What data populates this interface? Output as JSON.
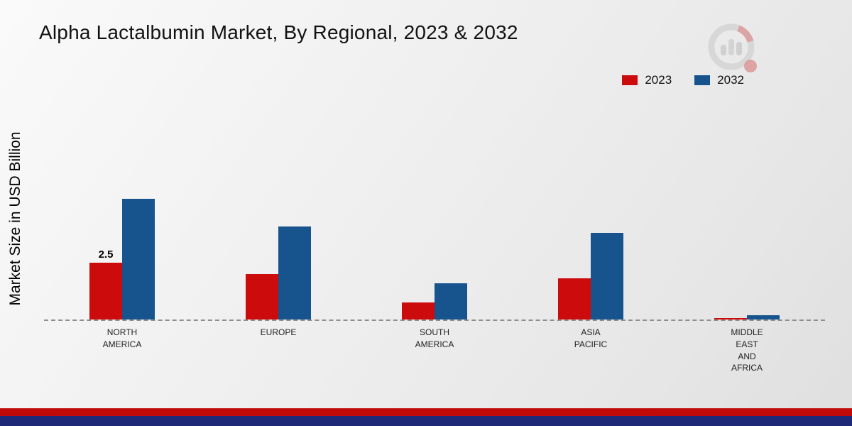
{
  "page": {
    "title": "Alpha Lactalbumin Market, By Regional, 2023 & 2032"
  },
  "y_axis_label": "Market Size in USD Billion",
  "legend": [
    {
      "label": "2023",
      "color": "#cc0c0c"
    },
    {
      "label": "2032",
      "color": "#17538c"
    }
  ],
  "chart_data": {
    "type": "bar",
    "title": "Alpha Lactalbumin Market, By Regional, 2023 & 2032",
    "ylabel": "Market Size in USD Billion",
    "xlabel": "",
    "categories": [
      "NORTH AMERICA",
      "EUROPE",
      "SOUTH AMERICA",
      "ASIA PACIFIC",
      "MIDDLE EAST AND AFRICA"
    ],
    "category_lines": [
      [
        "NORTH",
        "AMERICA"
      ],
      [
        "EUROPE"
      ],
      [
        "SOUTH",
        "AMERICA"
      ],
      [
        "ASIA",
        "PACIFIC"
      ],
      [
        "MIDDLE",
        "EAST",
        "AND",
        "AFRICA"
      ]
    ],
    "series": [
      {
        "name": "2023",
        "color": "#cc0c0c",
        "values": [
          2.5,
          2.0,
          0.75,
          1.8,
          0.07
        ]
      },
      {
        "name": "2032",
        "color": "#17538c",
        "values": [
          5.3,
          4.1,
          1.6,
          3.8,
          0.2
        ]
      }
    ],
    "ylim": [
      0,
      5.3
    ],
    "grid": false,
    "baseline_style": "dashed",
    "legend_position": "top-right",
    "annotations": [
      {
        "series": "2023",
        "category_index": 0,
        "text": "2.5"
      }
    ]
  },
  "footer": {
    "red_strip_color": "#c00a0a",
    "navy_strip_color": "#1e2a78"
  },
  "icons": {
    "logo": "brand-bar-chart-magnifier-logo"
  }
}
